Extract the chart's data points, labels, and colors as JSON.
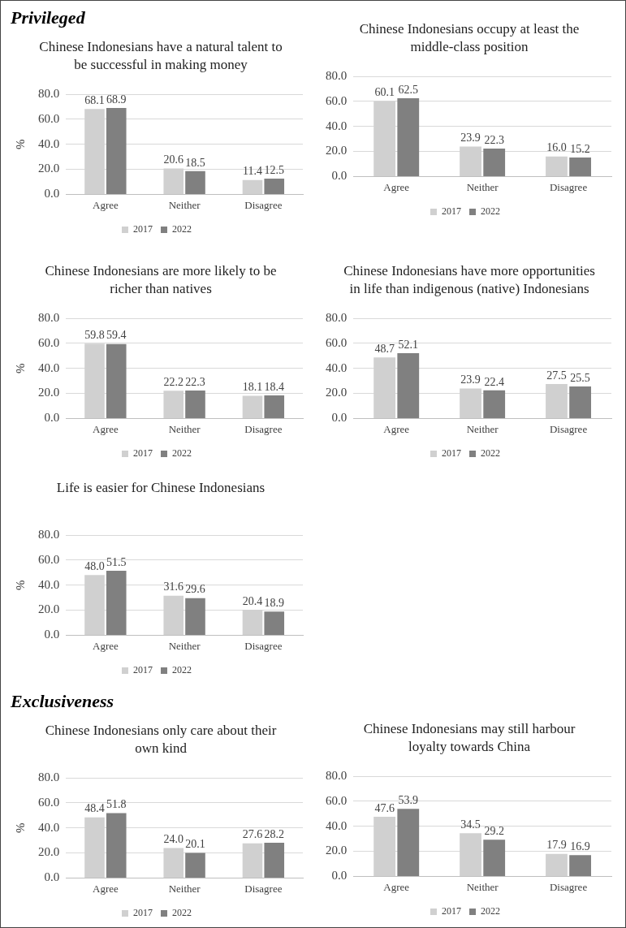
{
  "chart_data": [
    {
      "type": "bar",
      "annotations": [
        "Privileged"
      ],
      "title": "Chinese Indonesians have a natural talent to be successful in making money",
      "ylabel": "%",
      "categories": [
        "Agree",
        "Neither",
        "Disagree"
      ],
      "series": [
        {
          "name": "2017",
          "color": "#d0d0d0",
          "values": [
            68.1,
            20.6,
            11.4
          ],
          "value_labels": [
            "68.1",
            "20.6",
            "11.4"
          ]
        },
        {
          "name": "2022",
          "color": "#808080",
          "values": [
            68.9,
            18.5,
            12.5
          ],
          "value_labels": [
            "68.9",
            "18.5",
            "12.5"
          ]
        }
      ],
      "ylim": [
        0,
        80
      ],
      "yticks": [
        {
          "value": 0,
          "label": "0.0"
        },
        {
          "value": 20,
          "label": "20.0"
        },
        {
          "value": 40,
          "label": "40.0"
        },
        {
          "value": 60,
          "label": "60.0"
        },
        {
          "value": 80,
          "label": "80.0"
        }
      ],
      "grid": "y",
      "legend": "bottom"
    },
    {
      "type": "bar",
      "title": "Chinese Indonesians occupy at least the middle-class position",
      "categories": [
        "Agree",
        "Neither",
        "Disagree"
      ],
      "series": [
        {
          "name": "2017",
          "color": "#d0d0d0",
          "values": [
            60.1,
            23.9,
            16.0
          ],
          "value_labels": [
            "60.1",
            "23.9",
            "16.0"
          ]
        },
        {
          "name": "2022",
          "color": "#808080",
          "values": [
            62.5,
            22.3,
            15.2
          ],
          "value_labels": [
            "62.5",
            "22.3",
            "15.2"
          ]
        }
      ],
      "ylim": [
        0,
        80
      ],
      "yticks": [
        {
          "value": 0,
          "label": "0.0"
        },
        {
          "value": 20,
          "label": "20.0"
        },
        {
          "value": 40,
          "label": "40.0"
        },
        {
          "value": 60,
          "label": "60.0"
        },
        {
          "value": 80,
          "label": "80.0"
        }
      ],
      "grid": "y",
      "legend": "bottom"
    },
    {
      "type": "bar",
      "title": "Chinese Indonesians are more likely to be richer than natives",
      "ylabel": "%",
      "categories": [
        "Agree",
        "Neither",
        "Disagree"
      ],
      "series": [
        {
          "name": "2017",
          "color": "#d0d0d0",
          "values": [
            59.8,
            22.2,
            18.1
          ],
          "value_labels": [
            "59.8",
            "22.2",
            "18.1"
          ]
        },
        {
          "name": "2022",
          "color": "#808080",
          "values": [
            59.4,
            22.3,
            18.4
          ],
          "value_labels": [
            "59.4",
            "22.3",
            "18.4"
          ]
        }
      ],
      "ylim": [
        0,
        80
      ],
      "yticks": [
        {
          "value": 0,
          "label": "0.0"
        },
        {
          "value": 20,
          "label": "20.0"
        },
        {
          "value": 40,
          "label": "40.0"
        },
        {
          "value": 60,
          "label": "60.0"
        },
        {
          "value": 80,
          "label": "80.0"
        }
      ],
      "grid": "y",
      "legend": "bottom"
    },
    {
      "type": "bar",
      "title": "Chinese Indonesians have more opportunities in life than indigenous (native) Indonesians",
      "categories": [
        "Agree",
        "Neither",
        "Disagree"
      ],
      "series": [
        {
          "name": "2017",
          "color": "#d0d0d0",
          "values": [
            48.7,
            23.9,
            27.5
          ],
          "value_labels": [
            "48.7",
            "23.9",
            "27.5"
          ]
        },
        {
          "name": "2022",
          "color": "#808080",
          "values": [
            52.1,
            22.4,
            25.5
          ],
          "value_labels": [
            "52.1",
            "22.4",
            "25.5"
          ]
        }
      ],
      "ylim": [
        0,
        80
      ],
      "yticks": [
        {
          "value": 0,
          "label": "0.0"
        },
        {
          "value": 20,
          "label": "20.0"
        },
        {
          "value": 40,
          "label": "40.0"
        },
        {
          "value": 60,
          "label": "60.0"
        },
        {
          "value": 80,
          "label": "80.0"
        }
      ],
      "grid": "y",
      "legend": "bottom"
    },
    {
      "type": "bar",
      "title": "Life is easier for Chinese Indonesians",
      "ylabel": "%",
      "categories": [
        "Agree",
        "Neither",
        "Disagree"
      ],
      "series": [
        {
          "name": "2017",
          "color": "#d0d0d0",
          "values": [
            48.0,
            31.6,
            20.4
          ],
          "value_labels": [
            "48.0",
            "31.6",
            "20.4"
          ]
        },
        {
          "name": "2022",
          "color": "#808080",
          "values": [
            51.5,
            29.6,
            18.9
          ],
          "value_labels": [
            "51.5",
            "29.6",
            "18.9"
          ]
        }
      ],
      "ylim": [
        0,
        80
      ],
      "yticks": [
        {
          "value": 0,
          "label": "0.0"
        },
        {
          "value": 20,
          "label": "20.0"
        },
        {
          "value": 40,
          "label": "40.0"
        },
        {
          "value": 60,
          "label": "60.0"
        },
        {
          "value": 80,
          "label": "80.0"
        }
      ],
      "grid": "y",
      "legend": "bottom"
    },
    {
      "type": "bar",
      "annotations": [
        "Exclusiveness"
      ],
      "title": "Chinese Indonesians only care about their own kind",
      "ylabel": "%",
      "categories": [
        "Agree",
        "Neither",
        "Disagree"
      ],
      "series": [
        {
          "name": "2017",
          "color": "#d0d0d0",
          "values": [
            48.4,
            24.0,
            27.6
          ],
          "value_labels": [
            "48.4",
            "24.0",
            "27.6"
          ]
        },
        {
          "name": "2022",
          "color": "#808080",
          "values": [
            51.8,
            20.1,
            28.2
          ],
          "value_labels": [
            "51.8",
            "20.1",
            "28.2"
          ]
        }
      ],
      "ylim": [
        0,
        80
      ],
      "yticks": [
        {
          "value": 0,
          "label": "0.0"
        },
        {
          "value": 20,
          "label": "20.0"
        },
        {
          "value": 40,
          "label": "40.0"
        },
        {
          "value": 60,
          "label": "60.0"
        },
        {
          "value": 80,
          "label": "80.0"
        }
      ],
      "grid": "y",
      "legend": "bottom"
    },
    {
      "type": "bar",
      "title": "Chinese Indonesians may still harbour loyalty towards China",
      "categories": [
        "Agree",
        "Neither",
        "Disagree"
      ],
      "series": [
        {
          "name": "2017",
          "color": "#d0d0d0",
          "values": [
            47.6,
            34.5,
            17.9
          ],
          "value_labels": [
            "47.6",
            "34.5",
            "17.9"
          ]
        },
        {
          "name": "2022",
          "color": "#808080",
          "values": [
            53.9,
            29.2,
            16.9
          ],
          "value_labels": [
            "53.9",
            "29.2",
            "16.9"
          ]
        }
      ],
      "ylim": [
        0,
        80
      ],
      "yticks": [
        {
          "value": 0,
          "label": "0.0"
        },
        {
          "value": 20,
          "label": "20.0"
        },
        {
          "value": 40,
          "label": "40.0"
        },
        {
          "value": 60,
          "label": "60.0"
        },
        {
          "value": 80,
          "label": "80.0"
        }
      ],
      "grid": "y",
      "legend": "bottom"
    }
  ]
}
